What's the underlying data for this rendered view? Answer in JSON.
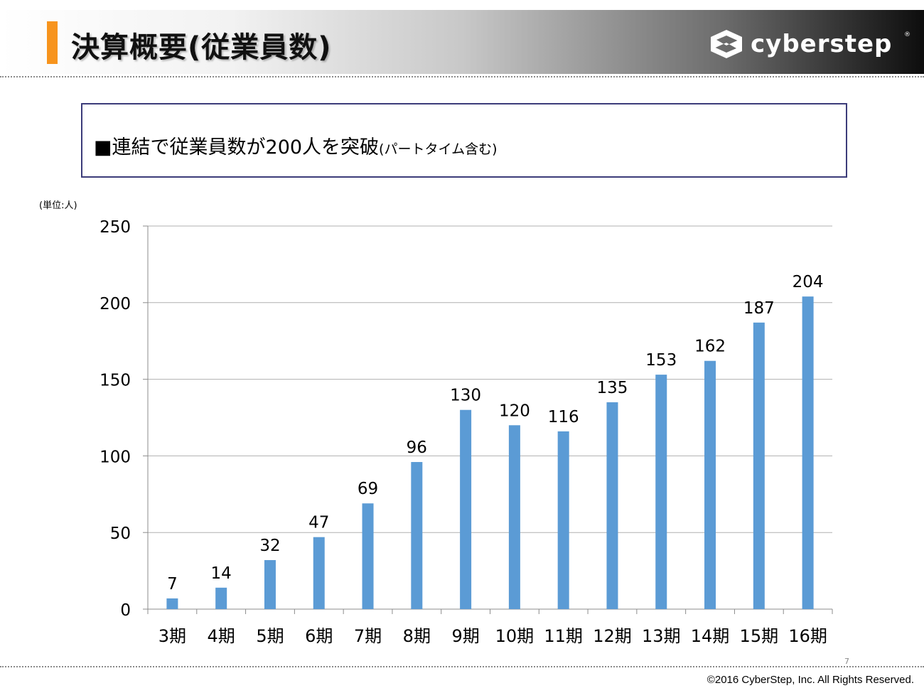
{
  "header": {
    "title": "決算概要(従業員数)",
    "logo_text": "cyberstep",
    "logo_icon": "cyberstep-logo-icon",
    "accent_color": "#f7941d"
  },
  "notice": {
    "main": "■連結で従業員数が200人を突破",
    "sub": "(パートタイム含む)"
  },
  "unit_label": "(単位:人)",
  "chart_data": {
    "type": "bar",
    "title": "",
    "xlabel": "",
    "ylabel": "",
    "categories": [
      "3期",
      "4期",
      "5期",
      "6期",
      "7期",
      "8期",
      "9期",
      "10期",
      "11期",
      "12期",
      "13期",
      "14期",
      "15期",
      "16期"
    ],
    "values": [
      7,
      14,
      32,
      47,
      69,
      96,
      130,
      120,
      116,
      135,
      153,
      162,
      187,
      204
    ],
    "ylim": [
      0,
      250
    ],
    "yticks": [
      0,
      50,
      100,
      150,
      200,
      250
    ],
    "grid": true,
    "data_labels": true,
    "bar_color": "#5b9bd5"
  },
  "footer": {
    "page": "7",
    "copyright": "©2016 CyberStep, Inc. All Rights Reserved."
  }
}
